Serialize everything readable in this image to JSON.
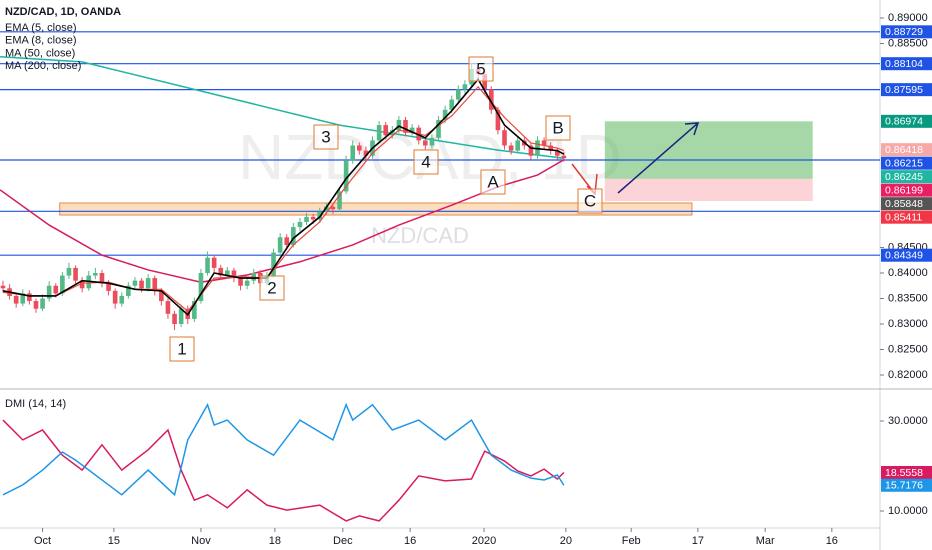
{
  "chart_data": {
    "type": "candlestick",
    "title": "NZD/CAD, 1D, OANDA",
    "watermark": "NZDCAD, 1D",
    "watermark_sub": "NZD/CAD",
    "up_color": "#53b987",
    "down_color": "#eb4d5c",
    "ylim": [
      0.81745,
      0.89353
    ],
    "xlim": [
      -0.45,
      132.9
    ],
    "yticks": [
      {
        "value": 0.89,
        "label": "0.89000"
      },
      {
        "value": 0.885,
        "label": "0.88500"
      },
      {
        "value": 0.845,
        "label": "0.84500"
      },
      {
        "value": 0.84,
        "label": "0.84000"
      },
      {
        "value": 0.835,
        "label": "0.83500"
      },
      {
        "value": 0.83,
        "label": "0.83000"
      },
      {
        "value": 0.825,
        "label": "0.82500"
      },
      {
        "value": 0.82,
        "label": "0.82000"
      }
    ],
    "xticks": [
      {
        "value": 6,
        "label": "Oct"
      },
      {
        "value": 16.8,
        "label": "15"
      },
      {
        "value": 30,
        "label": "Nov"
      },
      {
        "value": 41.2,
        "label": "18"
      },
      {
        "value": 51.5,
        "label": "Dec"
      },
      {
        "value": 61.7,
        "label": "16"
      },
      {
        "value": 72.9,
        "label": "2020"
      },
      {
        "value": 85.3,
        "label": "20"
      },
      {
        "value": 95.2,
        "label": "Feb"
      },
      {
        "value": 105.3,
        "label": "17"
      },
      {
        "value": 115.5,
        "label": "Mar"
      },
      {
        "value": 125.6,
        "label": "16"
      }
    ],
    "ohlc": [
      [
        0.8375,
        0.8385,
        0.8362,
        0.837
      ],
      [
        0.837,
        0.8378,
        0.8348,
        0.8355
      ],
      [
        0.8355,
        0.8362,
        0.8332,
        0.834
      ],
      [
        0.834,
        0.8368,
        0.8335,
        0.836
      ],
      [
        0.836,
        0.8366,
        0.8338,
        0.8345
      ],
      [
        0.8345,
        0.835,
        0.8322,
        0.833
      ],
      [
        0.833,
        0.8358,
        0.8325,
        0.835
      ],
      [
        0.835,
        0.8384,
        0.8344,
        0.8375
      ],
      [
        0.8375,
        0.838,
        0.8352,
        0.836
      ],
      [
        0.836,
        0.8402,
        0.8355,
        0.8395
      ],
      [
        0.8395,
        0.842,
        0.8388,
        0.841
      ],
      [
        0.841,
        0.8415,
        0.8378,
        0.8385
      ],
      [
        0.8385,
        0.8392,
        0.8362,
        0.837
      ],
      [
        0.837,
        0.8404,
        0.8365,
        0.8395
      ],
      [
        0.8395,
        0.841,
        0.8388,
        0.84
      ],
      [
        0.84,
        0.8406,
        0.8372,
        0.838
      ],
      [
        0.838,
        0.8386,
        0.8356,
        0.8365
      ],
      [
        0.8365,
        0.837,
        0.833,
        0.834
      ],
      [
        0.834,
        0.8362,
        0.8334,
        0.8355
      ],
      [
        0.8355,
        0.8382,
        0.835,
        0.8375
      ],
      [
        0.8375,
        0.8392,
        0.8368,
        0.8385
      ],
      [
        0.8385,
        0.839,
        0.8362,
        0.837
      ],
      [
        0.837,
        0.8398,
        0.8364,
        0.839
      ],
      [
        0.839,
        0.8395,
        0.8356,
        0.8365
      ],
      [
        0.8365,
        0.837,
        0.8336,
        0.8345
      ],
      [
        0.8345,
        0.835,
        0.831,
        0.832
      ],
      [
        0.832,
        0.8326,
        0.8288,
        0.83
      ],
      [
        0.83,
        0.8338,
        0.8294,
        0.833
      ],
      [
        0.833,
        0.8336,
        0.83,
        0.831
      ],
      [
        0.831,
        0.8352,
        0.8304,
        0.8345
      ],
      [
        0.8345,
        0.8408,
        0.834,
        0.84
      ],
      [
        0.84,
        0.8442,
        0.8395,
        0.843
      ],
      [
        0.843,
        0.8436,
        0.8402,
        0.841
      ],
      [
        0.841,
        0.8416,
        0.8386,
        0.8395
      ],
      [
        0.8395,
        0.8412,
        0.8388,
        0.8405
      ],
      [
        0.8405,
        0.841,
        0.8382,
        0.839
      ],
      [
        0.839,
        0.8396,
        0.8366,
        0.8375
      ],
      [
        0.8375,
        0.8392,
        0.8368,
        0.8385
      ],
      [
        0.8385,
        0.8408,
        0.8378,
        0.84
      ],
      [
        0.84,
        0.8406,
        0.8372,
        0.838
      ],
      [
        0.838,
        0.8402,
        0.8374,
        0.8395
      ],
      [
        0.8395,
        0.8448,
        0.839,
        0.844
      ],
      [
        0.844,
        0.8478,
        0.8434,
        0.847
      ],
      [
        0.847,
        0.8476,
        0.8446,
        0.8455
      ],
      [
        0.8455,
        0.8498,
        0.845,
        0.849
      ],
      [
        0.849,
        0.8508,
        0.8482,
        0.85
      ],
      [
        0.85,
        0.8518,
        0.8494,
        0.851
      ],
      [
        0.851,
        0.8516,
        0.8496,
        0.8505
      ],
      [
        0.8505,
        0.8528,
        0.8498,
        0.852
      ],
      [
        0.852,
        0.8538,
        0.8514,
        0.853
      ],
      [
        0.853,
        0.8536,
        0.8516,
        0.8525
      ],
      [
        0.8525,
        0.8568,
        0.852,
        0.856
      ],
      [
        0.856,
        0.863,
        0.8555,
        0.862
      ],
      [
        0.862,
        0.866,
        0.8614,
        0.865
      ],
      [
        0.865,
        0.8656,
        0.8632,
        0.864
      ],
      [
        0.864,
        0.8648,
        0.8622,
        0.863
      ],
      [
        0.863,
        0.8668,
        0.8624,
        0.866
      ],
      [
        0.866,
        0.8698,
        0.8654,
        0.869
      ],
      [
        0.869,
        0.8696,
        0.8662,
        0.867
      ],
      [
        0.867,
        0.8688,
        0.8664,
        0.868
      ],
      [
        0.868,
        0.8708,
        0.8674,
        0.87
      ],
      [
        0.87,
        0.8706,
        0.8668,
        0.8675
      ],
      [
        0.8675,
        0.8692,
        0.867,
        0.8685
      ],
      [
        0.8685,
        0.869,
        0.8652,
        0.866
      ],
      [
        0.866,
        0.8666,
        0.8642,
        0.865
      ],
      [
        0.865,
        0.8672,
        0.8644,
        0.8665
      ],
      [
        0.8665,
        0.8708,
        0.866,
        0.87
      ],
      [
        0.87,
        0.8728,
        0.8694,
        0.872
      ],
      [
        0.872,
        0.8748,
        0.8714,
        0.874
      ],
      [
        0.874,
        0.8768,
        0.8734,
        0.876
      ],
      [
        0.876,
        0.8778,
        0.8752,
        0.877
      ],
      [
        0.877,
        0.8812,
        0.8764,
        0.88
      ],
      [
        0.88,
        0.8806,
        0.878,
        0.879
      ],
      [
        0.879,
        0.8796,
        0.8752,
        0.876
      ],
      [
        0.876,
        0.8766,
        0.8712,
        0.872
      ],
      [
        0.872,
        0.8726,
        0.8672,
        0.868
      ],
      [
        0.868,
        0.8686,
        0.8642,
        0.865
      ],
      [
        0.865,
        0.8656,
        0.8632,
        0.864
      ],
      [
        0.864,
        0.8668,
        0.8634,
        0.866
      ],
      [
        0.866,
        0.8666,
        0.8642,
        0.865
      ],
      [
        0.865,
        0.8656,
        0.8622,
        0.863
      ],
      [
        0.863,
        0.8668,
        0.8624,
        0.866
      ],
      [
        0.866,
        0.8666,
        0.8642,
        0.865
      ],
      [
        0.865,
        0.8656,
        0.8632,
        0.864
      ],
      [
        0.864,
        0.8646,
        0.8622,
        0.863
      ],
      [
        0.863,
        0.8638,
        0.8618,
        0.8625
      ]
    ],
    "series": [
      {
        "name": "EMA (5, close)",
        "color": "#000000",
        "x": [
          0,
          4,
          8,
          12,
          16,
          20,
          24,
          28,
          32,
          36,
          40,
          44,
          48,
          52,
          56,
          60,
          64,
          68,
          72,
          76,
          80,
          84,
          85
        ],
        "values": [
          0.8365,
          0.8355,
          0.8355,
          0.8385,
          0.838,
          0.8368,
          0.8365,
          0.8318,
          0.84,
          0.839,
          0.839,
          0.8468,
          0.851,
          0.8585,
          0.8645,
          0.8688,
          0.8665,
          0.8718,
          0.878,
          0.869,
          0.8645,
          0.864,
          0.8633
        ]
      },
      {
        "name": "EMA (8, close)",
        "color": "#e8493a",
        "x": [
          0,
          4,
          8,
          12,
          16,
          20,
          24,
          28,
          32,
          36,
          40,
          44,
          48,
          52,
          56,
          60,
          64,
          68,
          72,
          76,
          80,
          84,
          85
        ],
        "values": [
          0.8362,
          0.8356,
          0.8355,
          0.838,
          0.8382,
          0.8368,
          0.8368,
          0.8325,
          0.839,
          0.8393,
          0.839,
          0.8455,
          0.85,
          0.857,
          0.8635,
          0.868,
          0.867,
          0.8708,
          0.8765,
          0.8705,
          0.8655,
          0.8645,
          0.864
        ]
      },
      {
        "name": "MA (50, close)",
        "color": "#d81b60",
        "x": [
          -0.45,
          7,
          15,
          22,
          30,
          37,
          45,
          53,
          60,
          68,
          75,
          81,
          85
        ],
        "values": [
          0.8563,
          0.8494,
          0.8435,
          0.8406,
          0.8382,
          0.8396,
          0.8422,
          0.8455,
          0.8494,
          0.8533,
          0.8569,
          0.8592,
          0.8622
        ]
      },
      {
        "name": "MA (200, close)",
        "color": "#1fb5a0",
        "x": [
          -0.45,
          12,
          51,
          75,
          85
        ],
        "values": [
          0.8824,
          0.8814,
          0.869,
          0.8641,
          0.8625
        ]
      }
    ],
    "levels": [
      0.88729,
      0.88104,
      0.87595,
      0.86215,
      0.8521,
      0.84349
    ],
    "level_color": "#1e53e5",
    "price_tags": [
      {
        "value": 0.88729,
        "color": "#1e53e5"
      },
      {
        "value": 0.88104,
        "color": "#1e53e5"
      },
      {
        "value": 0.87595,
        "color": "#1e53e5"
      },
      {
        "value": 0.86974,
        "color": "#089981"
      },
      {
        "value": 0.86418,
        "color": "#f7a9a8"
      },
      {
        "value": 0.86215,
        "color": "#1e53e5"
      },
      {
        "value": 0.86245,
        "color": "#1fb5a0"
      },
      {
        "value": 0.86199,
        "color": "#e91e63"
      },
      {
        "value": 0.85848,
        "color": "#555555"
      },
      {
        "value": 0.85411,
        "color": "#f23645"
      },
      {
        "value": 0.84349,
        "color": "#1e53e5"
      }
    ],
    "zone": [
      0.85137,
      0.85373
    ],
    "zone_x": [
      8.6,
      104.4
    ],
    "position": {
      "target": 0.86974,
      "entry": 0.85848,
      "stop": 0.85411,
      "x": [
        91.2,
        122.7
      ]
    },
    "annotations": [
      "1",
      "2",
      "3",
      "4",
      "5",
      "A",
      "B",
      "C"
    ],
    "dmi": {
      "title": "DMI (14, 14)",
      "ylim": [
        6.89,
        36.44
      ],
      "yticks": [
        {
          "value": 30,
          "label": "30.0000"
        },
        {
          "value": 10,
          "label": "10.0000"
        }
      ],
      "series": [
        {
          "color": "#d81b60",
          "x": [
            0,
            3,
            6,
            9,
            12,
            15,
            18,
            22,
            25,
            27,
            29,
            31,
            34,
            37,
            40,
            43,
            48,
            52,
            54,
            57,
            60,
            63,
            67,
            71,
            73,
            76,
            78,
            80,
            82,
            84,
            85
          ],
          "values": [
            30.2,
            25.8,
            28.0,
            22.4,
            19.1,
            24.7,
            19.1,
            23.6,
            28.0,
            19.1,
            12.4,
            13.6,
            10.7,
            14.7,
            11.3,
            10.2,
            11.3,
            7.8,
            8.9,
            7.8,
            12.4,
            17.8,
            16.7,
            17.1,
            23.3,
            21.1,
            18.9,
            17.8,
            19.3,
            17.1,
            18.5558
          ]
        },
        {
          "color": "#1e96e8",
          "x": [
            0,
            3,
            6,
            9,
            11,
            15,
            18,
            22,
            26,
            28,
            31,
            32,
            34,
            37,
            41,
            45,
            50,
            52,
            53,
            56,
            59,
            63,
            67,
            71,
            74,
            77,
            80,
            82,
            84,
            85
          ],
          "values": [
            13.6,
            15.8,
            19.1,
            23.1,
            21.3,
            16.9,
            13.6,
            19.1,
            13.6,
            25.8,
            33.6,
            29.1,
            30.2,
            25.8,
            22.4,
            30.2,
            25.8,
            33.6,
            30.2,
            33.6,
            28.0,
            30.2,
            25.8,
            30.2,
            22.4,
            19.1,
            17.3,
            16.9,
            18.0,
            15.7176
          ]
        }
      ]
    }
  }
}
